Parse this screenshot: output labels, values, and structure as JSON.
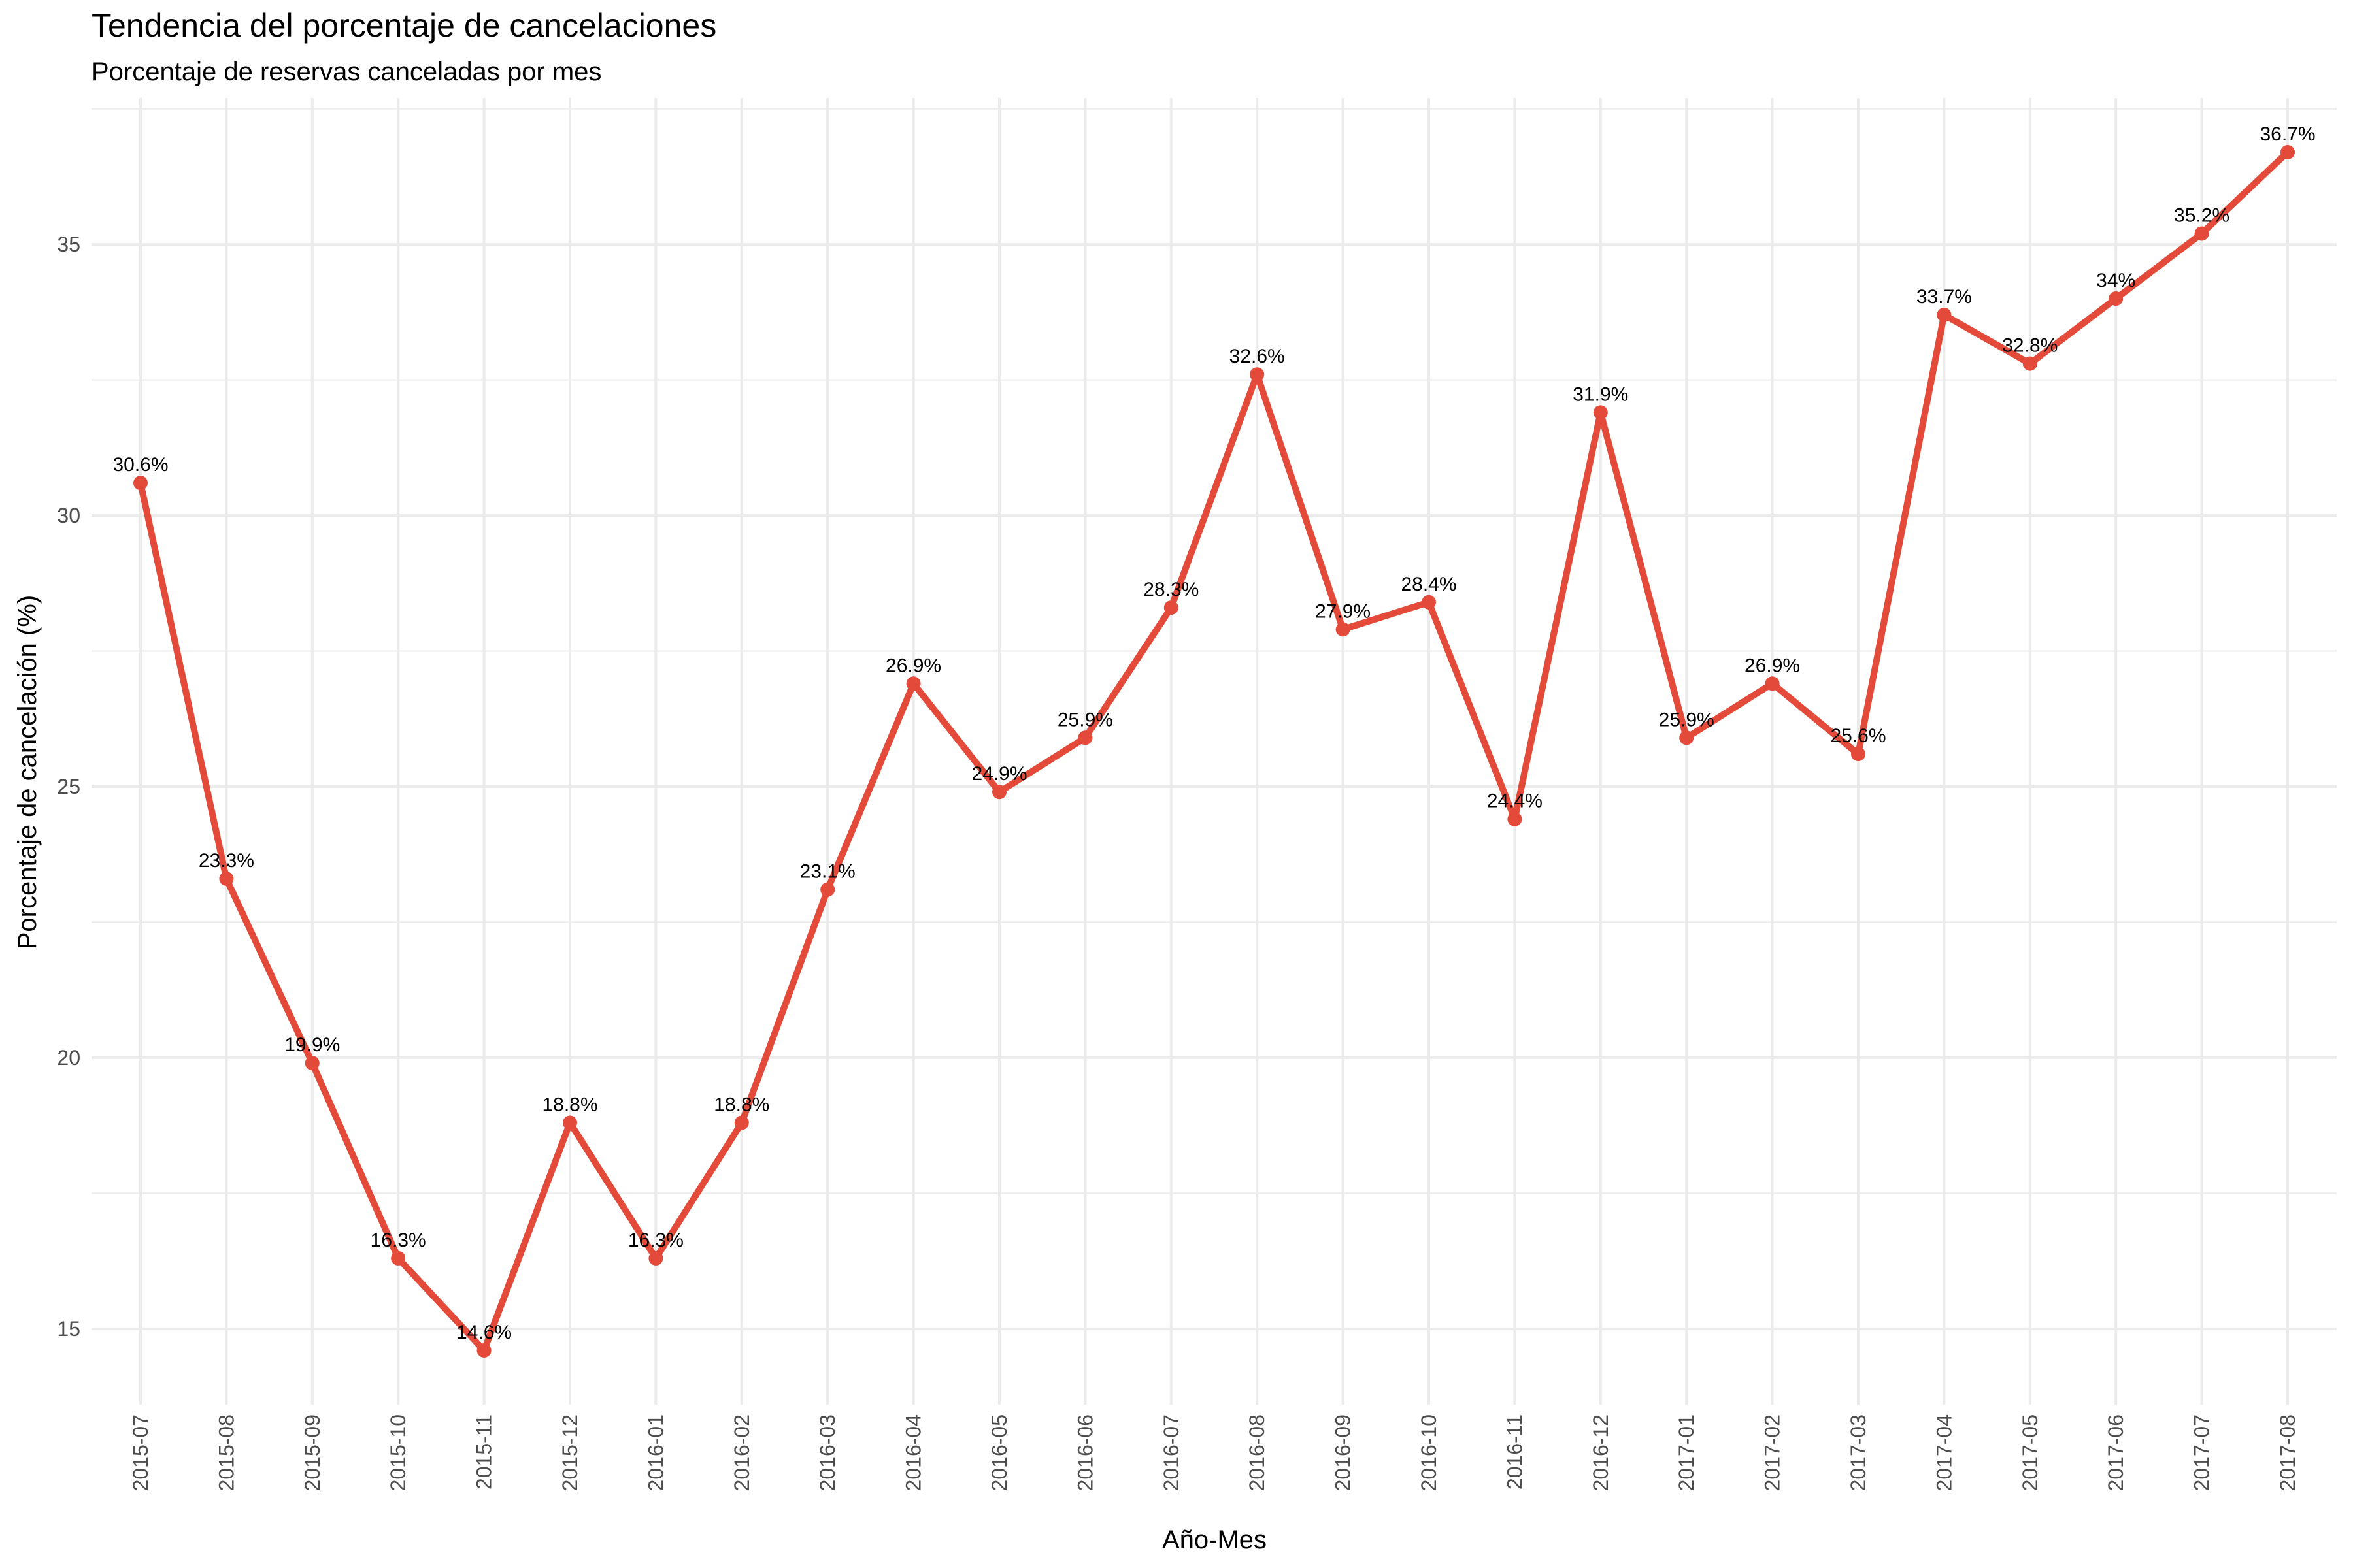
{
  "chart_data": {
    "type": "line",
    "title": "Tendencia del porcentaje de cancelaciones",
    "subtitle": "Porcentaje de reservas canceladas por mes",
    "xlabel": "Año-Mes",
    "ylabel": "Porcentaje de cancelación (%)",
    "ylim": [
      13.6,
      37.7
    ],
    "yticks": [
      15,
      20,
      25,
      30,
      35
    ],
    "grid": true,
    "line_color": "#e34a3a",
    "categories": [
      "2015-07",
      "2015-08",
      "2015-09",
      "2015-10",
      "2015-11",
      "2015-12",
      "2016-01",
      "2016-02",
      "2016-03",
      "2016-04",
      "2016-05",
      "2016-06",
      "2016-07",
      "2016-08",
      "2016-09",
      "2016-10",
      "2016-11",
      "2016-12",
      "2017-01",
      "2017-02",
      "2017-03",
      "2017-04",
      "2017-05",
      "2017-06",
      "2017-07",
      "2017-08"
    ],
    "values": [
      30.6,
      23.3,
      19.9,
      16.3,
      14.6,
      18.8,
      16.3,
      18.8,
      23.1,
      26.9,
      24.9,
      25.9,
      28.3,
      32.6,
      27.9,
      28.4,
      24.4,
      31.9,
      25.9,
      26.9,
      25.6,
      33.7,
      32.8,
      34,
      35.2,
      36.7
    ],
    "labels": [
      "30.6%",
      "23.3%",
      "19.9%",
      "16.3%",
      "14.6%",
      "18.8%",
      "16.3%",
      "18.8%",
      "23.1%",
      "26.9%",
      "24.9%",
      "25.9%",
      "28.3%",
      "32.6%",
      "27.9%",
      "28.4%",
      "24.4%",
      "31.9%",
      "25.9%",
      "26.9%",
      "25.6%",
      "33.7%",
      "32.8%",
      "34%",
      "35.2%",
      "36.7%"
    ]
  }
}
